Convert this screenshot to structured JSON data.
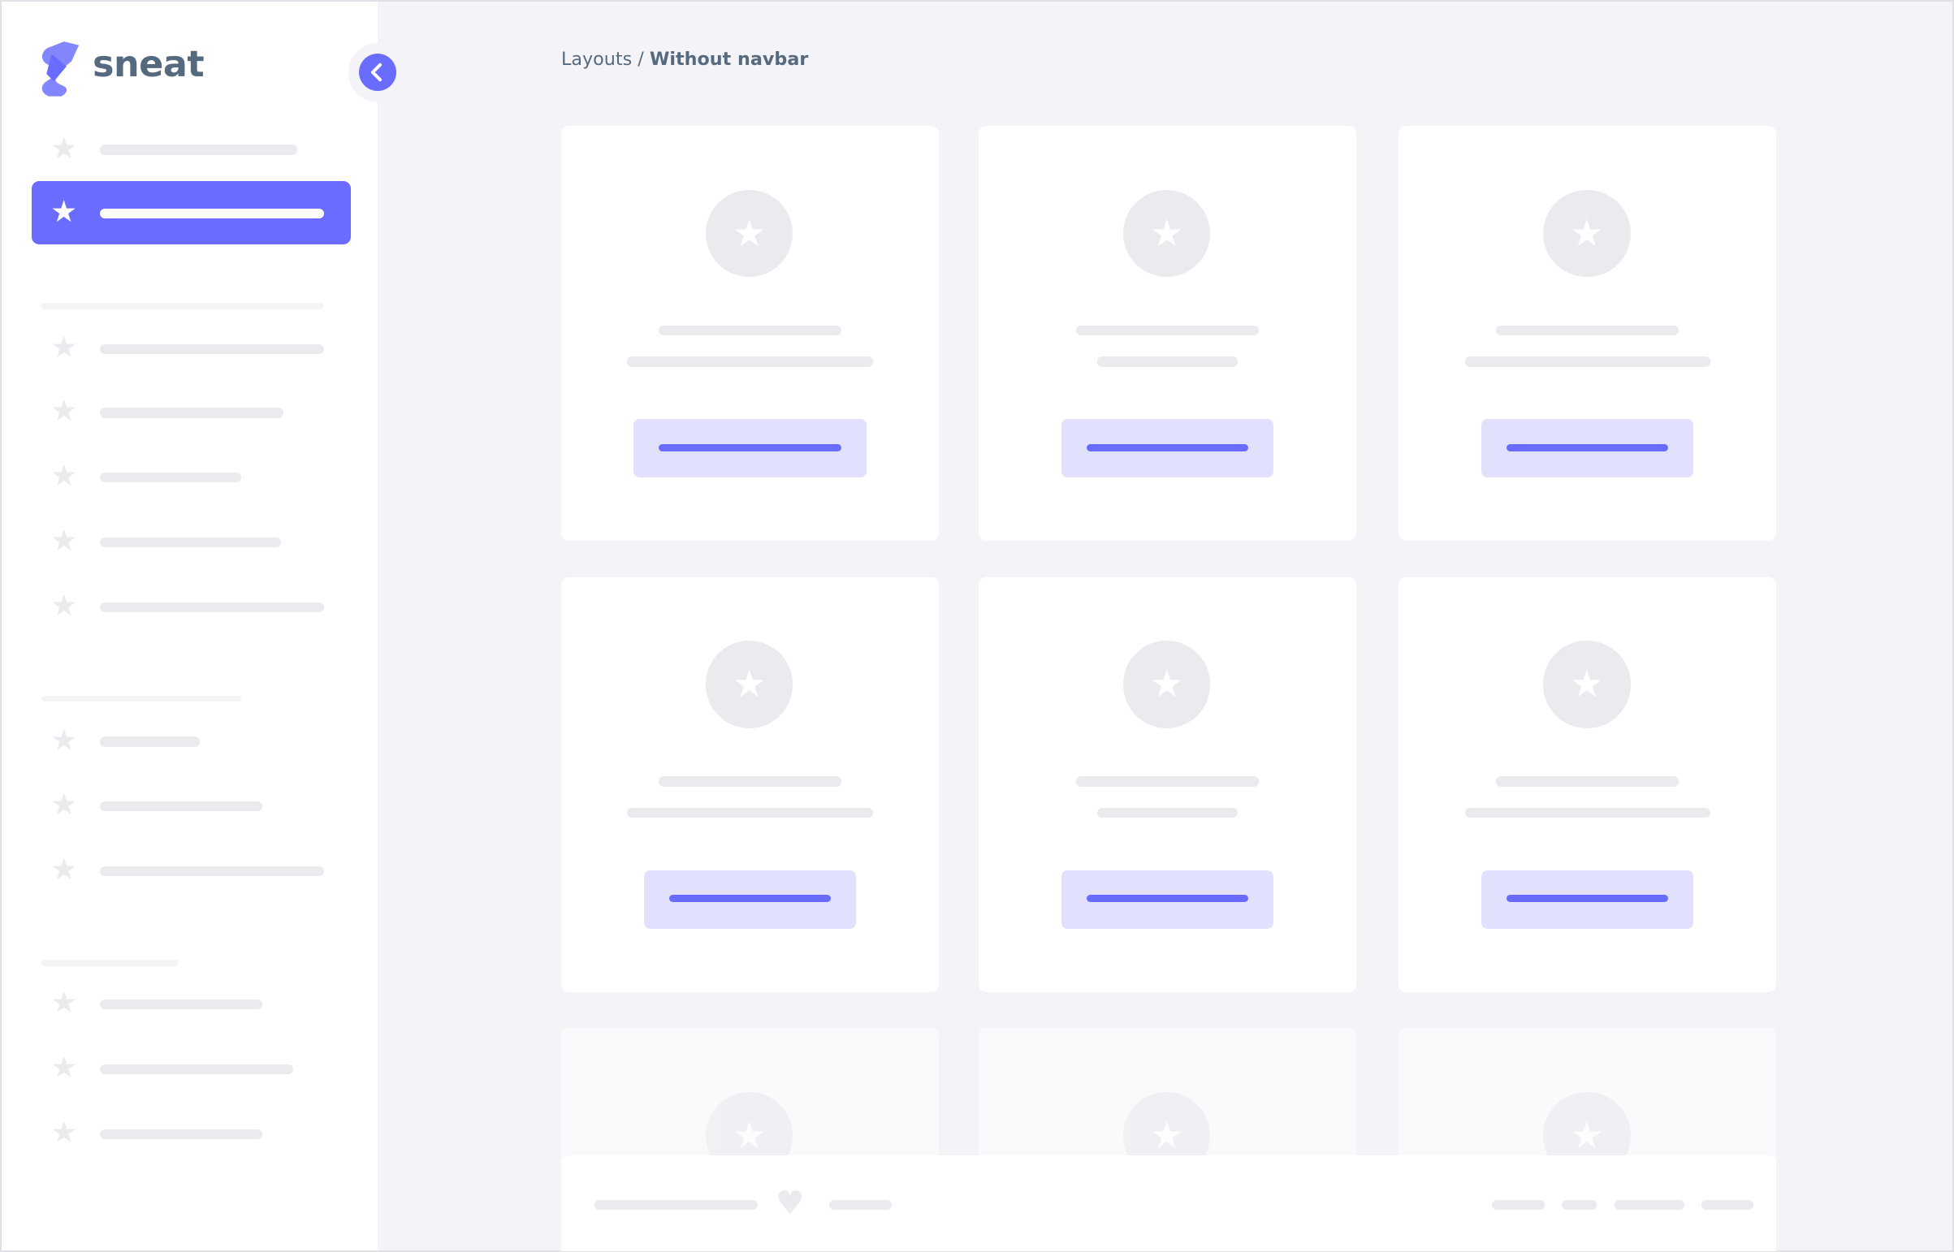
{
  "brand": {
    "name": "sneat",
    "logo_icon": "sneat-logo"
  },
  "sidebar": {
    "collapse_icon": "chevron-left-icon",
    "item_icon": "star-icon"
  },
  "breadcrumb": {
    "parent": "Layouts",
    "separator": " / ",
    "current": "Without navbar"
  },
  "footer": {
    "icon": "heart-icon"
  },
  "colors": {
    "primary": "#696cff",
    "primary_light": "#e1e1fd",
    "text": "#566a7f",
    "background": "#f4f4f8",
    "placeholder": "#ebebef"
  }
}
